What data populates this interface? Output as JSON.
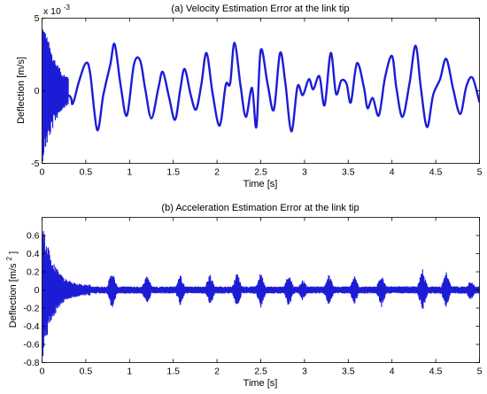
{
  "chart_data": [
    {
      "type": "line",
      "title": "(a) Velocity Estimation Error at the link tip",
      "xlabel": "Time [s]",
      "ylabel": "Deflection [m/s]",
      "y_multiplier": "x 10^-3",
      "y_multiplier_base": "x 10",
      "y_multiplier_exp": "-3",
      "xlim": [
        0,
        5
      ],
      "ylim": [
        -5,
        5
      ],
      "x_ticks": [
        "0",
        "0.5",
        "1",
        "1.5",
        "2",
        "2.5",
        "3",
        "3.5",
        "4",
        "4.5",
        "5"
      ],
      "y_ticks": [
        "-5",
        "0",
        "5"
      ],
      "line_color": "#1c1cd6",
      "grid": false,
      "series": [
        {
          "x": [
            0,
            0.3,
            0.35,
            0.42,
            0.5,
            0.55,
            0.63,
            0.7,
            0.78,
            0.83,
            0.9,
            0.97,
            1.05,
            1.12,
            1.18,
            1.25,
            1.33,
            1.38,
            1.45,
            1.52,
            1.58,
            1.63,
            1.7,
            1.76,
            1.82,
            1.88,
            1.95,
            2.03,
            2.1,
            2.15,
            2.2,
            2.27,
            2.33,
            2.4,
            2.45,
            2.5,
            2.58,
            2.65,
            2.72,
            2.78,
            2.85,
            2.92,
            2.98,
            3.05,
            3.1,
            3.17,
            3.23,
            3.3,
            3.36,
            3.42,
            3.48,
            3.53,
            3.6,
            3.68,
            3.72,
            3.78,
            3.85,
            3.92,
            4.0,
            4.05,
            4.12,
            4.2,
            4.27,
            4.33,
            4.4,
            4.47,
            4.55,
            4.62,
            4.7,
            4.78,
            4.85,
            4.92,
            5.0
          ],
          "y": [
            0,
            -0.3,
            -0.9,
            0.6,
            1.9,
            1.2,
            -2.7,
            -0.3,
            1.8,
            3.2,
            0.3,
            -1.7,
            1.8,
            2.1,
            0.1,
            -1.9,
            0.2,
            1.3,
            -0.4,
            -2.0,
            0.1,
            1.5,
            -0.3,
            -1.3,
            0.4,
            2.6,
            -0.2,
            -2.4,
            0.4,
            0.5,
            3.3,
            0.3,
            -1.8,
            0.2,
            -2.5,
            2.8,
            0.4,
            -1.3,
            2.6,
            0.6,
            -2.8,
            0.3,
            -0.3,
            0.8,
            0.1,
            1.0,
            -1.0,
            2.6,
            -0.2,
            0.7,
            0.5,
            -0.8,
            1.9,
            0.2,
            -1.2,
            -0.5,
            -1.7,
            0.9,
            2.4,
            0.2,
            -1.8,
            0.5,
            3.1,
            0.2,
            -2.5,
            -0.3,
            0.8,
            2.2,
            0.1,
            -1.6,
            0.3,
            0.9,
            -0.8
          ]
        }
      ],
      "initial_transient": {
        "x_range": [
          0,
          0.3
        ],
        "envelope_start": 5.0,
        "envelope_end": 1.1
      }
    },
    {
      "type": "line",
      "title": "(b) Acceleration Estimation Error at the link tip",
      "xlabel": "Time [s]",
      "ylabel": "Deflection [m/s",
      "ylabel_sup": "2",
      "ylabel_end": "]",
      "xlim": [
        0,
        5
      ],
      "ylim": [
        -0.8,
        0.8
      ],
      "x_ticks": [
        "0",
        "0.5",
        "1",
        "1.5",
        "2",
        "2.5",
        "3",
        "3.5",
        "4",
        "4.5",
        "5"
      ],
      "y_ticks": [
        "-0.8",
        "-0.6",
        "-0.4",
        "-0.2",
        "0",
        "0.2",
        "0.4",
        "0.6"
      ],
      "line_color": "#1c1cd6",
      "grid": false,
      "series": [
        {
          "baseline_noise": 0.04,
          "initial_transient": {
            "x_range": [
              0,
              0.55
            ],
            "envelope_start": 0.8,
            "envelope_end": 0.05
          },
          "bursts": [
            {
              "x": 0.8,
              "amp": 0.22
            },
            {
              "x": 1.2,
              "amp": 0.18
            },
            {
              "x": 1.58,
              "amp": 0.17
            },
            {
              "x": 1.92,
              "amp": 0.18
            },
            {
              "x": 2.23,
              "amp": 0.2
            },
            {
              "x": 2.5,
              "amp": 0.2
            },
            {
              "x": 2.82,
              "amp": 0.19
            },
            {
              "x": 2.98,
              "amp": 0.12
            },
            {
              "x": 3.28,
              "amp": 0.18
            },
            {
              "x": 3.57,
              "amp": 0.16
            },
            {
              "x": 3.88,
              "amp": 0.2
            },
            {
              "x": 4.35,
              "amp": 0.24
            },
            {
              "x": 4.62,
              "amp": 0.2
            },
            {
              "x": 4.9,
              "amp": 0.12
            }
          ]
        }
      ]
    }
  ]
}
